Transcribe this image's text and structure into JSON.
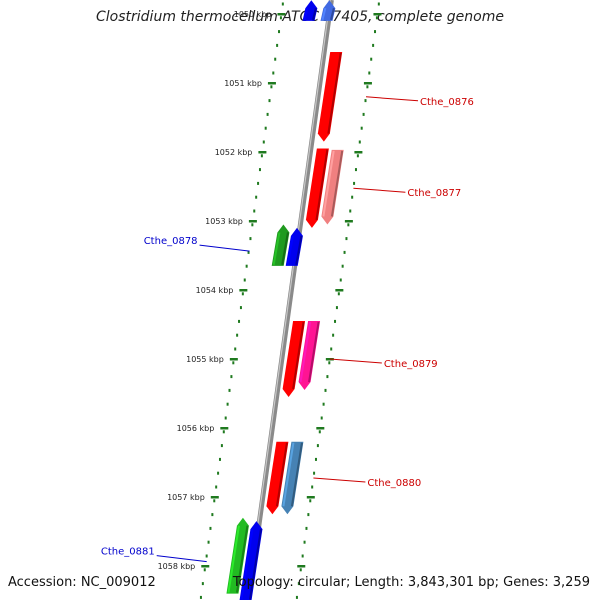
{
  "title": "Clostridium thermocellum ATCC 27405, complete genome",
  "accession": "Accession: NC_009012",
  "topology": "Topology: circular; Length: 3,843,301 bp; Genes: 3,259",
  "colors": {
    "backbone": "#8a8a8a",
    "tick": "#1f7a1f",
    "forward_label": "#cc0000",
    "reverse_label": "#0000cc"
  },
  "kbp_labels": [
    {
      "kb": 1050,
      "text": "1050 kbp"
    },
    {
      "kb": 1051,
      "text": "1051 kbp"
    },
    {
      "kb": 1052,
      "text": "1052 kbp"
    },
    {
      "kb": 1053,
      "text": "1053 kbp"
    },
    {
      "kb": 1054,
      "text": "1054 kbp"
    },
    {
      "kb": 1055,
      "text": "1055 kbp"
    },
    {
      "kb": 1056,
      "text": "1056 kbp"
    },
    {
      "kb": 1057,
      "text": "1057 kbp"
    },
    {
      "kb": 1058,
      "text": "1058 kbp"
    }
  ],
  "genes": [
    {
      "label": "Cthe_0876",
      "strand": "forward",
      "start_kb": 1050.55,
      "end_kb": 1051.85,
      "color": "#ff0000"
    },
    {
      "label": "Cthe_0877",
      "strand": "forward",
      "start_kb": 1051.95,
      "end_kb": 1053.1,
      "color": "#ff0000"
    },
    {
      "label": "Cthe_0878",
      "strand": "reverse",
      "start_kb": 1053.05,
      "end_kb": 1053.65,
      "color": "#1f9a1f"
    },
    {
      "label": "Cthe_0879",
      "strand": "forward",
      "start_kb": 1054.45,
      "end_kb": 1055.55,
      "color": "#ff0000"
    },
    {
      "label": "Cthe_0880",
      "strand": "forward",
      "start_kb": 1056.2,
      "end_kb": 1057.25,
      "color": "#ff0000"
    },
    {
      "label": "Cthe_0881",
      "strand": "reverse",
      "start_kb": 1057.3,
      "end_kb": 1058.4,
      "color": "#22bb22"
    }
  ],
  "cds_features": [
    {
      "gene": "Cthe_0876",
      "start_kb": 1050.55,
      "end_kb": 1051.85,
      "color": "#ff0000"
    },
    {
      "gene": "Cthe_0877",
      "start_kb": 1051.95,
      "end_kb": 1053.1,
      "color": "#ff0000"
    },
    {
      "gene": "Cthe_0877",
      "start_kb": 1051.97,
      "end_kb": 1053.05,
      "color": "#f08080"
    },
    {
      "gene": "Cthe_0878",
      "start_kb": 1053.1,
      "end_kb": 1053.65,
      "color": "#0000ee"
    },
    {
      "gene": "Cthe_0879",
      "start_kb": 1054.45,
      "end_kb": 1055.55,
      "color": "#ff0000"
    },
    {
      "gene": "Cthe_0879",
      "start_kb": 1054.45,
      "end_kb": 1055.45,
      "color": "#ff1493"
    },
    {
      "gene": "Cthe_0880",
      "start_kb": 1056.2,
      "end_kb": 1057.25,
      "color": "#ff0000"
    },
    {
      "gene": "Cthe_0880",
      "start_kb": 1056.2,
      "end_kb": 1057.25,
      "color": "#4682b4"
    },
    {
      "gene": "Cthe_0881",
      "start_kb": 1057.35,
      "end_kb": 1058.5,
      "color": "#0000ee"
    },
    {
      "gene": "prev",
      "start_kb": 1049.8,
      "end_kb": 1050.1,
      "color": "#0000ee"
    },
    {
      "gene": "prev",
      "start_kb": 1049.8,
      "end_kb": 1050.1,
      "color": "#4169e1"
    }
  ]
}
